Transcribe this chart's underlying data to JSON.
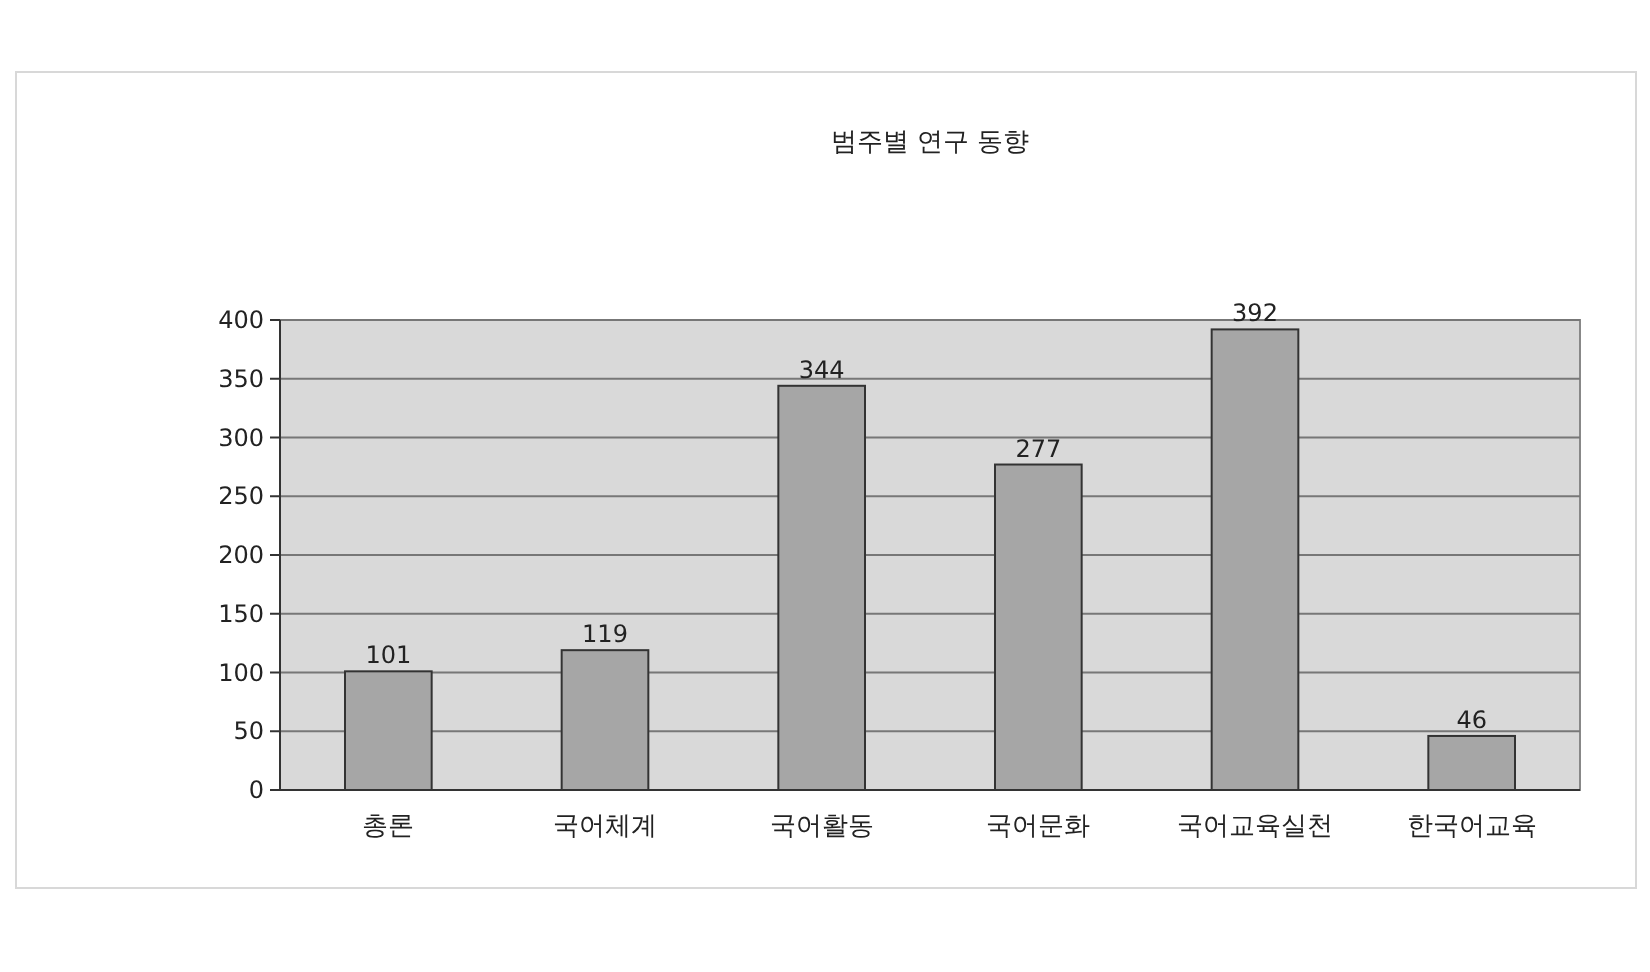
{
  "chart_data": {
    "type": "bar",
    "title": "범주별 연구 동향",
    "categories": [
      "총론",
      "국어체계",
      "국어활동",
      "국어문화",
      "국어교육실천",
      "한국어교육"
    ],
    "values": [
      101,
      119,
      344,
      277,
      392,
      46
    ],
    "color": "#a6a6a6",
    "ylim": [
      0,
      400
    ],
    "yticks": [
      0,
      50,
      100,
      150,
      200,
      250,
      300,
      350,
      400
    ],
    "grid": "y",
    "data_labels": true
  }
}
